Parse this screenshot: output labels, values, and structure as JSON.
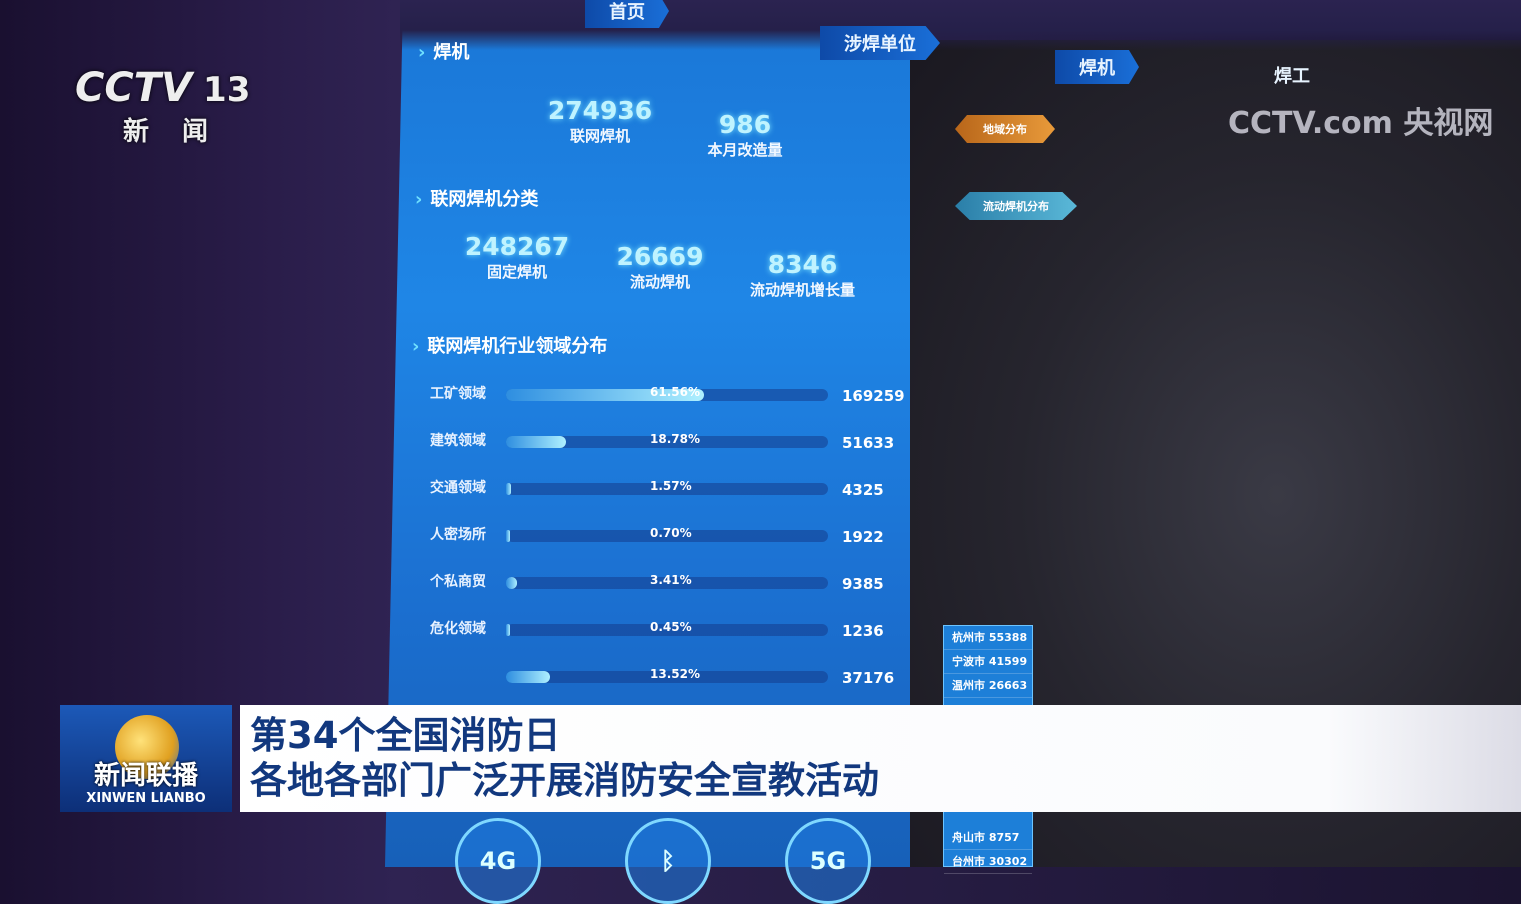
{
  "broadcast": {
    "channel_logo": "CCTV",
    "channel_number": "13",
    "channel_name": "新 闻",
    "watermark": "CCTV.com 央视网",
    "program_logo": "新闻联播",
    "program_roman": "XINWEN LIANBO"
  },
  "headline": {
    "line1": "第34个全国消防日",
    "line2": "各地各部门广泛开展消防安全宣教活动"
  },
  "dashboard": {
    "nav": [
      "首页",
      "涉焊单位",
      "焊机",
      "焊工"
    ],
    "welders": {
      "title": "焊机",
      "stats": [
        {
          "value": "274936",
          "label": "联网焊机"
        },
        {
          "value": "986",
          "label": "本月改造量"
        }
      ]
    },
    "classification": {
      "title": "联网焊机分类",
      "stats": [
        {
          "value": "248267",
          "label": "固定焊机"
        },
        {
          "value": "26669",
          "label": "流动焊机"
        },
        {
          "value": "8346",
          "label": "流动焊机增长量"
        }
      ]
    },
    "industry": {
      "title": "联网焊机行业领域分布",
      "rows": [
        {
          "name": "工矿领域",
          "pct": "61.56%",
          "pct_value": 61.56,
          "count": "169259"
        },
        {
          "name": "建筑领域",
          "pct": "18.78%",
          "pct_value": 18.78,
          "count": "51633"
        },
        {
          "name": "交通领域",
          "pct": "1.57%",
          "pct_value": 1.57,
          "count": "4325"
        },
        {
          "name": "人密场所",
          "pct": "0.70%",
          "pct_value": 0.7,
          "count": "1922"
        },
        {
          "name": "个私商贸",
          "pct": "3.41%",
          "pct_value": 3.41,
          "count": "9385"
        },
        {
          "name": "危化领域",
          "pct": "0.45%",
          "pct_value": 0.45,
          "count": "1236"
        },
        {
          "name": "",
          "pct": "13.52%",
          "pct_value": 13.52,
          "count": "37176"
        }
      ]
    },
    "map_buttons": [
      "地域分布",
      "流动焊机分布"
    ],
    "cities": [
      {
        "name": "杭州市",
        "value": "55388"
      },
      {
        "name": "宁波市",
        "value": "41599"
      },
      {
        "name": "温州市",
        "value": "26663"
      },
      {
        "name": "舟山市",
        "value": "8757"
      },
      {
        "name": "台州市",
        "value": "30302"
      }
    ],
    "bottom_icons": [
      {
        "icon": "4g-icon",
        "label": "4G"
      },
      {
        "icon": "bluetooth-icon",
        "label": "ᛒ"
      },
      {
        "icon": "5g-icon",
        "label": "5G"
      }
    ]
  }
}
